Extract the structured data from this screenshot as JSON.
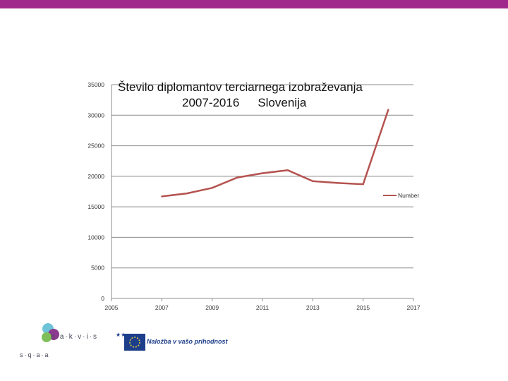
{
  "chart_data": {
    "type": "line",
    "title_line1": "Število diplomantov  terciarnega  izobraževanja",
    "title_line2_years": "2007-2016",
    "title_line2_country": "Slovenija",
    "x": [
      2007,
      2008,
      2009,
      2010,
      2011,
      2012,
      2013,
      2014,
      2015,
      2016
    ],
    "series": [
      {
        "name": "Number",
        "values": [
          16700,
          17200,
          18100,
          19800,
          20500,
          21000,
          19200,
          18900,
          18700,
          30900
        ]
      }
    ],
    "xlim": [
      2005,
      2017
    ],
    "ylim": [
      0,
      35000
    ],
    "x_ticks": [
      "2005",
      "2007",
      "2009",
      "2011",
      "2013",
      "2015",
      "2017"
    ],
    "y_ticks": [
      "0",
      "5000",
      "10000",
      "15000",
      "20000",
      "25000",
      "30000",
      "35000"
    ],
    "legend_position": "right",
    "grid": true,
    "line_color": "#b55350"
  },
  "logos": {
    "left_brand": "n·a·k·v·i·s",
    "left_sub": "s·q·a·a",
    "right_text": "Naložba v vašo prihodnost"
  }
}
